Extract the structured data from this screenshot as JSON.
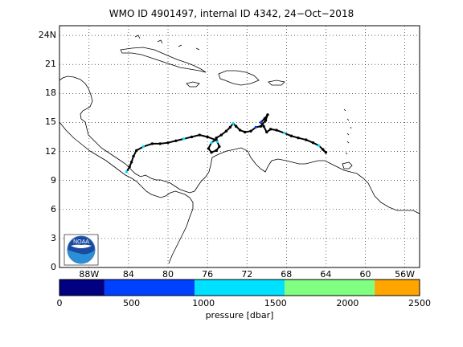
{
  "title": "WMO ID 4901497, internal ID 4342, 24−Oct−2018",
  "map": {
    "lon_range": [
      -91.0,
      -54.5
    ],
    "lat_range": [
      0,
      25
    ],
    "y_ticks": [
      {
        "value": 0,
        "label": "0"
      },
      {
        "value": 3,
        "label": "3"
      },
      {
        "value": 6,
        "label": "6"
      },
      {
        "value": 9,
        "label": "9"
      },
      {
        "value": 12,
        "label": "12"
      },
      {
        "value": 15,
        "label": "15"
      },
      {
        "value": 18,
        "label": "18"
      },
      {
        "value": 21,
        "label": "21"
      },
      {
        "value": 24,
        "label": "24N"
      }
    ],
    "x_ticks": [
      {
        "value": -88,
        "label": "88W"
      },
      {
        "value": -84,
        "label": "84"
      },
      {
        "value": -80,
        "label": "80"
      },
      {
        "value": -76,
        "label": "76"
      },
      {
        "value": -72,
        "label": "72"
      },
      {
        "value": -68,
        "label": "68"
      },
      {
        "value": -64,
        "label": "64"
      },
      {
        "value": -60,
        "label": "60"
      },
      {
        "value": -56,
        "label": "56W"
      }
    ],
    "grid": true,
    "logo_text": "NOAA",
    "logo_icon": "noaa-logo-icon"
  },
  "float_track": [
    [
      -64.0,
      11.9
    ],
    [
      -64.3,
      12.2
    ],
    [
      -64.7,
      12.6
    ],
    [
      -65.3,
      12.9
    ],
    [
      -66.0,
      13.2
    ],
    [
      -66.8,
      13.4
    ],
    [
      -67.5,
      13.6
    ],
    [
      -68.2,
      13.9
    ],
    [
      -69.0,
      14.2
    ],
    [
      -69.6,
      14.3
    ],
    [
      -70.0,
      14.0
    ],
    [
      -70.3,
      14.6
    ],
    [
      -70.6,
      15.0
    ],
    [
      -70.2,
      15.4
    ],
    [
      -69.9,
      15.8
    ],
    [
      -70.1,
      15.2
    ],
    [
      -70.6,
      14.6
    ],
    [
      -71.1,
      14.5
    ],
    [
      -71.6,
      14.1
    ],
    [
      -72.2,
      14.0
    ],
    [
      -72.7,
      14.2
    ],
    [
      -73.1,
      14.6
    ],
    [
      -73.4,
      14.9
    ],
    [
      -73.7,
      14.5
    ],
    [
      -74.1,
      14.1
    ],
    [
      -74.6,
      13.7
    ],
    [
      -75.1,
      13.4
    ],
    [
      -75.0,
      13.0
    ],
    [
      -74.8,
      12.5
    ],
    [
      -75.1,
      12.1
    ],
    [
      -75.6,
      11.9
    ],
    [
      -75.9,
      12.3
    ],
    [
      -75.6,
      12.9
    ],
    [
      -75.2,
      13.2
    ],
    [
      -76.0,
      13.5
    ],
    [
      -76.8,
      13.7
    ],
    [
      -77.6,
      13.5
    ],
    [
      -78.4,
      13.3
    ],
    [
      -79.2,
      13.1
    ],
    [
      -80.0,
      12.9
    ],
    [
      -80.8,
      12.8
    ],
    [
      -81.6,
      12.8
    ],
    [
      -82.5,
      12.5
    ],
    [
      -83.2,
      12.1
    ],
    [
      -83.5,
      11.5
    ],
    [
      -83.7,
      10.9
    ],
    [
      -83.9,
      10.4
    ],
    [
      -84.2,
      9.9
    ]
  ],
  "track_pressure_levels": [
    1200,
    900,
    1400,
    1100,
    800,
    1300,
    1000,
    1500
  ],
  "colorbar": {
    "segments": [
      {
        "from": 0,
        "to": 312,
        "color": "#000080"
      },
      {
        "from": 312,
        "to": 938,
        "color": "#0040ff"
      },
      {
        "from": 938,
        "to": 1563,
        "color": "#00e0ff"
      },
      {
        "from": 1563,
        "to": 2188,
        "color": "#80ff80"
      },
      {
        "from": 2188,
        "to": 2500,
        "color": "#ffa500"
      }
    ],
    "range": [
      0,
      2500
    ],
    "ticks": [
      {
        "value": 0,
        "label": "0"
      },
      {
        "value": 500,
        "label": "500"
      },
      {
        "value": 1000,
        "label": "1000"
      },
      {
        "value": 1500,
        "label": "1500"
      },
      {
        "value": 2000,
        "label": "2000"
      },
      {
        "value": 2500,
        "label": "2500"
      }
    ],
    "label": "pressure [dbar]"
  }
}
